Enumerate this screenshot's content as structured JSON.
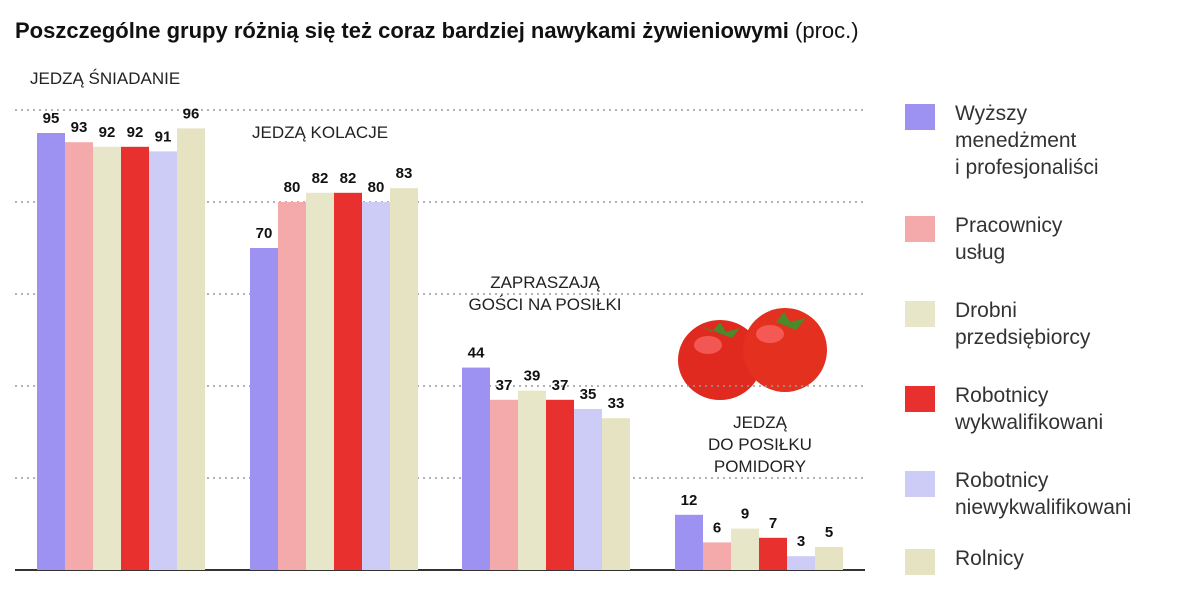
{
  "chart_data": {
    "type": "bar",
    "title": "Poszczególne grupy różnią się też coraz bardziej nawykami żywieniowymi",
    "subtitle": "(proc.)",
    "categories": [
      "JEDZĄ ŚNIADANIE",
      "JEDZĄ KOLACJE",
      "ZAPRASZAJĄ\nGOŚCI NA POSIŁKI",
      "JEDZĄ\nDO POSIŁKU\nPOMIDORY"
    ],
    "series": [
      {
        "name": "Wyższy\nmenedżment\ni profesjonaliści",
        "color": "#9d91f2",
        "values": [
          95,
          70,
          44,
          12
        ]
      },
      {
        "name": "Pracownicy\nusług",
        "color": "#f4aaaa",
        "values": [
          93,
          80,
          37,
          6
        ]
      },
      {
        "name": "Drobni\nprzedsiębiorcy",
        "color": "#e8e6c8",
        "values": [
          92,
          82,
          39,
          9
        ]
      },
      {
        "name": "Robotnicy\nwykwalifikowani",
        "color": "#e8302e",
        "values": [
          92,
          82,
          37,
          7
        ]
      },
      {
        "name": "Robotnicy\nniewykwalifikowani",
        "color": "#cdccf6",
        "values": [
          91,
          80,
          35,
          3
        ]
      },
      {
        "name": "Rolnicy",
        "color": "#e6e3c2",
        "values": [
          96,
          83,
          33,
          5
        ]
      }
    ],
    "ylim": [
      0,
      100
    ],
    "yticks": [
      0,
      20,
      40,
      60,
      80,
      100
    ],
    "grid": true
  }
}
